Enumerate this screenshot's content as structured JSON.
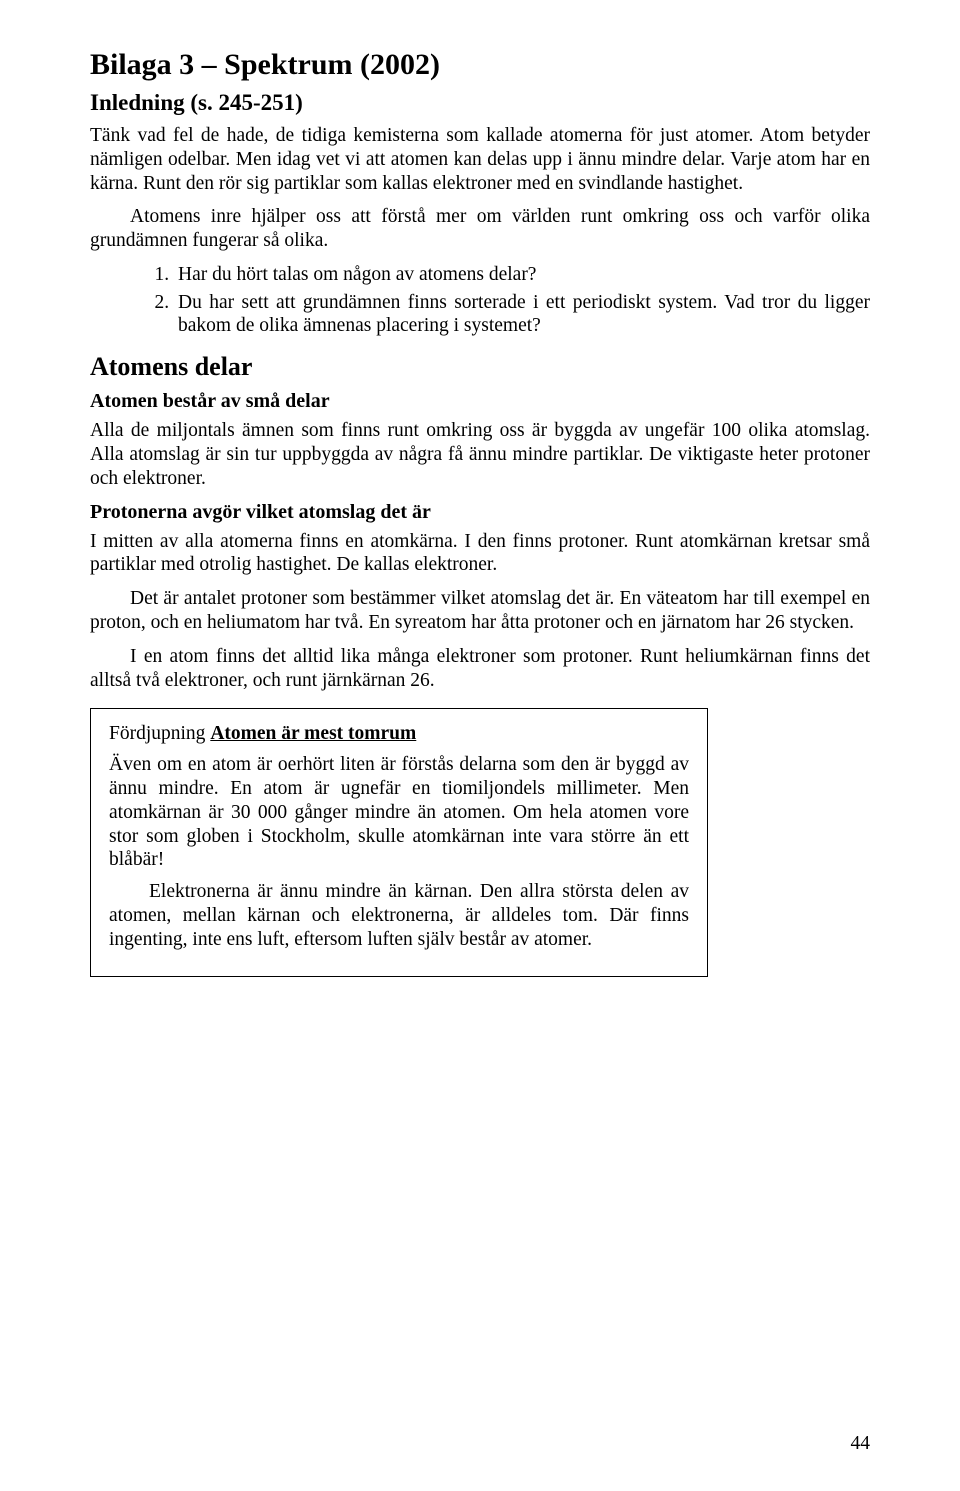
{
  "title": "Bilaga 3 – Spektrum (2002)",
  "subtitle": "Inledning (s. 245-251)",
  "intro": {
    "p1": "Tänk vad fel de hade, de tidiga kemisterna som kallade atomerna för just atomer. Atom betyder nämligen odelbar. Men idag vet vi att atomen kan delas upp i ännu mindre delar. Varje atom har en kärna. Runt den rör sig partiklar som kallas elektroner med en svindlande hastighet.",
    "p2": "Atomens inre hjälper oss att förstå mer om världen runt omkring oss och varför olika grundämnen fungerar så olika."
  },
  "questions": [
    "Har du hört talas om någon av atomens delar?",
    "Du har sett att grundämnen finns sorterade i ett periodiskt system. Vad tror du ligger bakom de olika ämnenas placering i systemet?"
  ],
  "section1": {
    "h2": "Atomens delar",
    "h3a": "Atomen består av små delar",
    "p1": "Alla de miljontals ämnen som finns runt omkring oss är byggda av ungefär 100 olika atomslag. Alla atomslag är sin tur uppbyggda av några få ännu mindre partiklar. De viktigaste heter protoner och elektroner.",
    "h3b": "Protonerna avgör vilket atomslag det är",
    "p2": "I mitten av alla atomerna finns en atomkärna. I den finns protoner. Runt atomkärnan kretsar små partiklar med otrolig hastighet. De kallas elektroner.",
    "p3": "Det är antalet protoner som bestämmer vilket atomslag det är. En väteatom har till exempel en proton, och en heliumatom har två. En syreatom har åtta protoner och en järnatom har 26 stycken.",
    "p4": "I en atom finns det alltid lika många elektroner som protoner. Runt heliumkärnan finns det alltså två elektroner, och runt järnkärnan 26."
  },
  "box": {
    "label": "Fördjupning ",
    "topic": "Atomen är mest tomrum",
    "p1": "Även om en atom är oerhört liten är förstås delarna som den är byggd av ännu mindre. En atom är ugnefär en tiomiljondels millimeter. Men atomkärnan är 30 000 gånger mindre än atomen. Om hela atomen vore stor som globen i Stockholm, skulle atomkärnan inte vara större än ett blåbär!",
    "p2": "Elektronerna är ännu mindre än kärnan. Den allra största delen av atomen, mellan kärnan och elektronerna, är alldeles tom. Där finns ingenting, inte ens luft, eftersom luften själv består av atomer."
  },
  "page_number": "44"
}
